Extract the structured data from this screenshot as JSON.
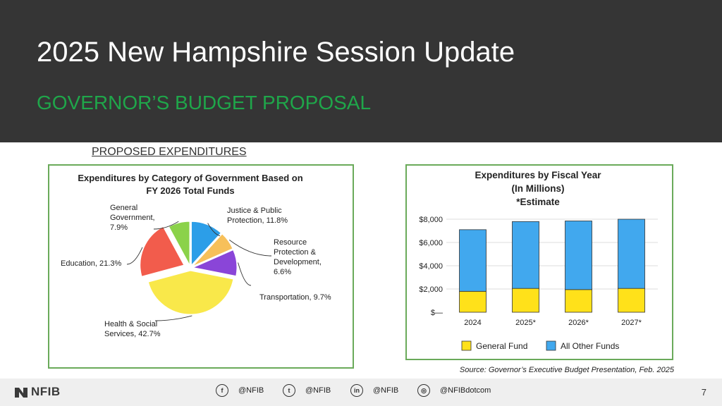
{
  "slide": {
    "title": "2025 New Hampshire Session Update",
    "subtitle": "GOVERNOR’S BUDGET PROPOSAL",
    "section_label": "PROPOSED EXPENDITURES",
    "source": "Source: Governor’s Executive Budget Presentation, Feb. 2025",
    "page_number": "7"
  },
  "footer": {
    "logo": "NFIB",
    "social": [
      {
        "icon": "facebook-icon",
        "glyph": "f",
        "handle": "@NFIB"
      },
      {
        "icon": "twitter-icon",
        "glyph": "t",
        "handle": "@NFIB"
      },
      {
        "icon": "linkedin-icon",
        "glyph": "in",
        "handle": "@NFIB"
      },
      {
        "icon": "instagram-icon",
        "glyph": "◎",
        "handle": "@NFIBdotcom"
      }
    ]
  },
  "colors": {
    "header_bg": "#353535",
    "subtitle": "#1fa64a",
    "panel_border": "#6aaa5a",
    "general_fund": "#ffe11a",
    "all_other_funds": "#41a8ee"
  },
  "chart_data": [
    {
      "type": "pie",
      "title_lines": [
        "Expenditures by Category of Government Based on",
        "FY 2026 Total Funds"
      ],
      "slices": [
        {
          "label_lines": [
            "Justice & Public",
            "Protection, 11.8%"
          ],
          "value": 11.8,
          "color": "#2c9ee8"
        },
        {
          "label_lines": [
            "Resource",
            "Protection &",
            "Development,",
            "6.6%"
          ],
          "value": 6.6,
          "color": "#f7c05a"
        },
        {
          "label_lines": [
            "Transportation, 9.7%"
          ],
          "value": 9.7,
          "color": "#8a45d8"
        },
        {
          "label_lines": [
            "Health & Social",
            "Services, 42.7%"
          ],
          "value": 42.7,
          "color": "#f9e84a"
        },
        {
          "label_lines": [
            "Education, 21.3%"
          ],
          "value": 21.3,
          "color": "#f25c4c"
        },
        {
          "label_lines": [
            "General",
            "Government,",
            "7.9%"
          ],
          "value": 7.9,
          "color": "#8bd24a"
        }
      ]
    },
    {
      "type": "bar",
      "stacked": true,
      "title_lines": [
        "Expenditures by Fiscal Year",
        "(In Millions)",
        "*Estimate"
      ],
      "categories": [
        "2024",
        "2025*",
        "2026*",
        "2027*"
      ],
      "series": [
        {
          "name": "General Fund",
          "values": [
            1800,
            2050,
            1950,
            2050
          ],
          "color": "#ffe11a"
        },
        {
          "name": "All Other Funds",
          "values": [
            5300,
            5750,
            5900,
            5950
          ],
          "color": "#41a8ee"
        }
      ],
      "ylim": [
        0,
        8000
      ],
      "yticks": [
        0,
        2000,
        4000,
        6000,
        8000
      ],
      "ytick_labels": [
        "$—",
        "$2,000",
        "$4,000",
        "$6,000",
        "$8,000"
      ],
      "grid": true,
      "legend_position": "bottom"
    }
  ]
}
